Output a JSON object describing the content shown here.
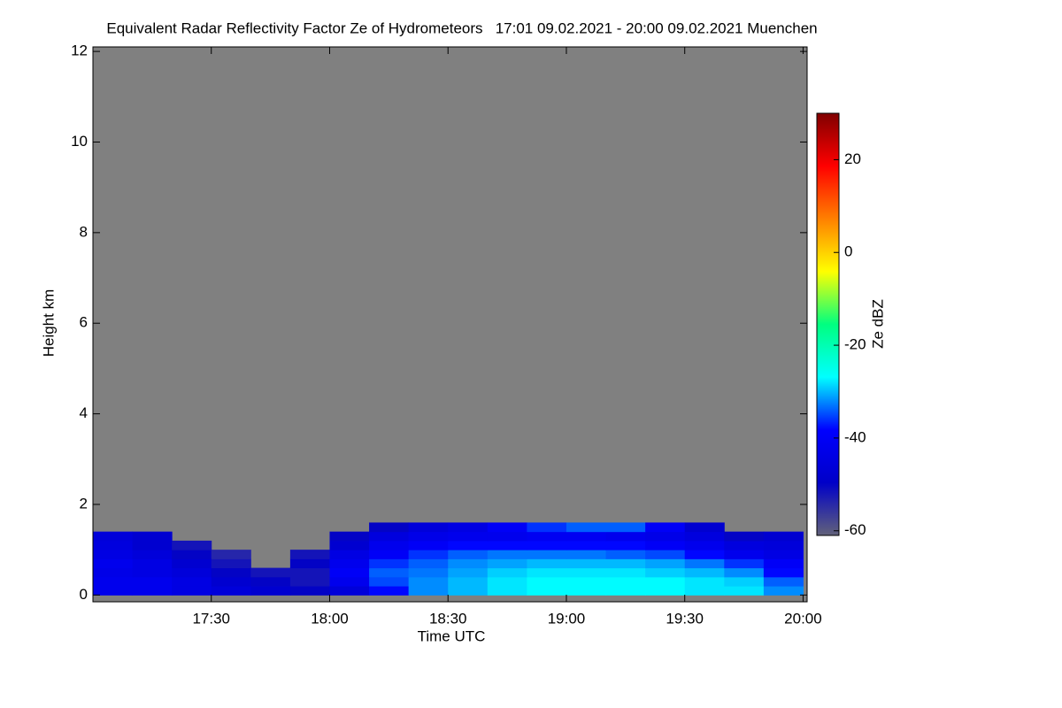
{
  "chart_data": {
    "type": "heatmap",
    "title": "Equivalent Radar Reflectivity Factor Ze of Hydrometeors   17:01 09.02.2021 - 20:00 09.02.2021 Muenchen",
    "x_label": "Time UTC",
    "y_label": "Height km",
    "colorbar_label": "Ze dBZ",
    "xlim": [
      17.0,
      20.017
    ],
    "xticks": [
      {
        "value": 17.5,
        "label": "17:30"
      },
      {
        "value": 18.0,
        "label": "18:00"
      },
      {
        "value": 18.5,
        "label": "18:30"
      },
      {
        "value": 19.0,
        "label": "19:00"
      },
      {
        "value": 19.5,
        "label": "19:30"
      },
      {
        "value": 20.0,
        "label": "20:00"
      }
    ],
    "ylim": [
      -0.15,
      12.1
    ],
    "yticks": [
      0,
      2,
      4,
      6,
      8,
      10,
      12
    ],
    "zlim": [
      -61,
      30
    ],
    "zticks": [
      -60,
      -40,
      -20,
      0,
      20
    ],
    "background_color": "#808080",
    "colorscale": [
      "#62627a",
      "#0000c8",
      "#0000ff",
      "#00ffff",
      "#00ff80",
      "#ffff00",
      "#ff8000",
      "#ff0000",
      "#800000"
    ],
    "x_bins": [
      17.0,
      17.1667,
      17.3333,
      17.5,
      17.6667,
      17.8333,
      18.0,
      18.1667,
      18.3333,
      18.5,
      18.6667,
      18.8333,
      19.0,
      19.1667,
      19.3333,
      19.5,
      19.6667,
      19.8333,
      20.0
    ],
    "y_bins": [
      0,
      0.2,
      0.4,
      0.6,
      0.8,
      1.0,
      1.2,
      1.4,
      1.6
    ],
    "z": [
      [
        -42,
        -42,
        -44,
        -46,
        -48,
        -50,
        -46,
        -38,
        -32,
        -30,
        -28,
        -27,
        -27,
        -27,
        -27,
        -28,
        -28,
        -32
      ],
      [
        -42,
        -42,
        -44,
        -48,
        -50,
        -52,
        -42,
        -35,
        -32,
        -30,
        -28,
        -27,
        -27,
        -27,
        -27,
        -28,
        -29,
        -34
      ],
      [
        -43,
        -44,
        -46,
        -50,
        -52,
        -52,
        -40,
        -34,
        -33,
        -31,
        -29,
        -28,
        -28,
        -28,
        -29,
        -30,
        -32,
        -38
      ],
      [
        -42,
        -44,
        -48,
        -52,
        null,
        -50,
        -42,
        -36,
        -34,
        -32,
        -31,
        -30,
        -30,
        -30,
        -31,
        -33,
        -36,
        -40
      ],
      [
        -44,
        -46,
        -50,
        -54,
        null,
        -52,
        -44,
        -40,
        -36,
        -34,
        -33,
        -33,
        -33,
        -34,
        -35,
        -38,
        -42,
        -44
      ],
      [
        -45,
        -48,
        -52,
        null,
        null,
        null,
        -48,
        -42,
        -40,
        -38,
        -38,
        -38,
        -38,
        -38,
        -40,
        -42,
        -45,
        -46
      ],
      [
        -46,
        -48,
        null,
        null,
        null,
        null,
        -50,
        -45,
        -43,
        -42,
        -42,
        -41,
        -41,
        -42,
        -43,
        -45,
        -50,
        -48
      ],
      [
        null,
        null,
        null,
        null,
        null,
        null,
        null,
        -50,
        -46,
        -44,
        -40,
        -36,
        -34,
        -34,
        -40,
        -48,
        null,
        null
      ]
    ]
  }
}
